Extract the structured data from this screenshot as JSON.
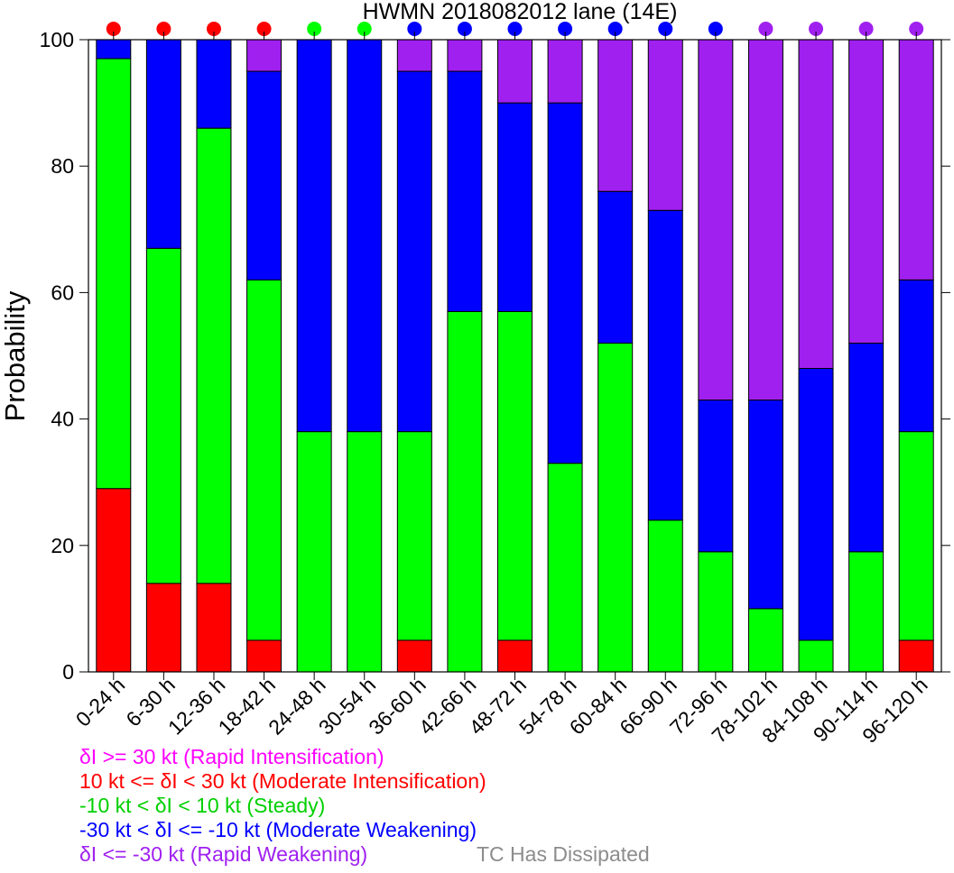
{
  "chart_data": {
    "type": "bar",
    "stacked": true,
    "title": "HWMN 2018082012 lane (14E)",
    "xlabel": "",
    "ylabel": "Probability",
    "ylim": [
      0,
      100
    ],
    "yticks": [
      0,
      20,
      40,
      60,
      80,
      100
    ],
    "categories": [
      "0-24 h",
      "6-30 h",
      "12-36 h",
      "18-42 h",
      "24-48 h",
      "30-54 h",
      "36-60 h",
      "42-66 h",
      "48-72 h",
      "54-78 h",
      "60-84 h",
      "66-90 h",
      "72-96 h",
      "78-102 h",
      "84-108 h",
      "90-114 h",
      "96-120 h"
    ],
    "series": [
      {
        "key": "rapid_intensification",
        "color": "#ff00ff",
        "values": [
          0,
          0,
          0,
          0,
          0,
          0,
          0,
          0,
          0,
          0,
          0,
          0,
          0,
          0,
          0,
          0,
          0
        ]
      },
      {
        "key": "moderate_intensification",
        "color": "#ff0000",
        "values": [
          29,
          14,
          14,
          5,
          0,
          0,
          5,
          0,
          5,
          0,
          0,
          0,
          0,
          0,
          0,
          0,
          5
        ]
      },
      {
        "key": "steady",
        "color": "#00ff00",
        "values": [
          68,
          53,
          72,
          57,
          38,
          38,
          33,
          57,
          52,
          33,
          52,
          24,
          19,
          10,
          5,
          19,
          33
        ]
      },
      {
        "key": "moderate_weakening",
        "color": "#0000ff",
        "values": [
          3,
          33,
          14,
          33,
          62,
          62,
          57,
          38,
          33,
          57,
          24,
          49,
          24,
          33,
          43,
          33,
          24
        ]
      },
      {
        "key": "rapid_weakening",
        "color": "#a020f0",
        "values": [
          0,
          0,
          0,
          5,
          0,
          0,
          5,
          5,
          10,
          10,
          24,
          27,
          57,
          57,
          52,
          48,
          38
        ]
      }
    ],
    "top_markers": [
      "#ff0000",
      "#ff0000",
      "#ff0000",
      "#ff0000",
      "#00ff00",
      "#00ff00",
      "#0000ff",
      "#0000ff",
      "#0000ff",
      "#0000ff",
      "#0000ff",
      "#0000ff",
      "#0000ff",
      "#a020f0",
      "#a020f0",
      "#a020f0",
      "#a020f0"
    ],
    "legend": [
      {
        "text": "δI >= 30 kt (Rapid Intensification)",
        "color": "#ff00ff"
      },
      {
        "text": "10 kt <= δI < 30 kt (Moderate Intensification)",
        "color": "#ff0000"
      },
      {
        "text": "-10 kt < δI < 10 kt (Steady)",
        "color": "#00ff00"
      },
      {
        "text": "-30 kt < δI <= -10 kt (Moderate Weakening)",
        "color": "#0000ff"
      },
      {
        "text": "δI <= -30 kt (Rapid Weakening)",
        "color": "#a020f0"
      }
    ],
    "note": {
      "text": "TC Has Dissipated",
      "color": "#8c8c8c"
    }
  }
}
